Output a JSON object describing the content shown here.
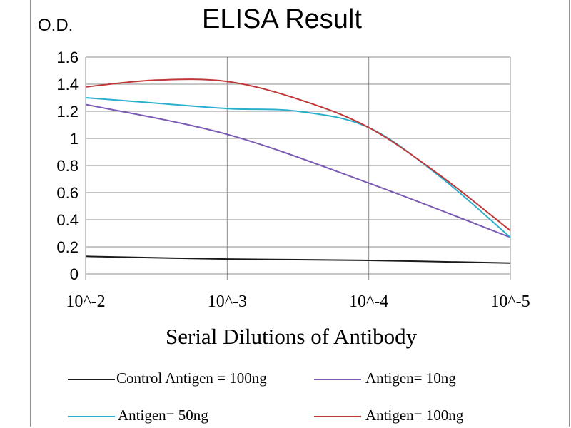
{
  "chart_data": {
    "type": "line",
    "title": "ELISA Result",
    "ylabel": "O.D.",
    "xlabel": "Serial Dilutions  of Antibody",
    "categories": [
      "10^-2",
      "10^-3",
      "10^-4",
      "10^-5"
    ],
    "x_positions": [
      0,
      1,
      2,
      3
    ],
    "ylim": [
      0,
      1.6
    ],
    "yticks": [
      0,
      0.2,
      0.4,
      0.6,
      0.8,
      1,
      1.2,
      1.4,
      1.6
    ],
    "ytick_labels": [
      "0",
      "0.2",
      "0.4",
      "0.6",
      "0.8",
      "1",
      "1.2",
      "1.4",
      "1.6"
    ],
    "grid": true,
    "legend_position": "bottom",
    "series": [
      {
        "name": "Control Antigen = 100ng",
        "color": "#1a1a1a",
        "x": [
          0,
          1,
          2,
          3
        ],
        "values": [
          0.13,
          0.11,
          0.1,
          0.08
        ]
      },
      {
        "name": "Antigen= 10ng",
        "color": "#7b5bb5",
        "x": [
          0,
          1,
          2,
          3
        ],
        "values": [
          1.25,
          1.03,
          0.67,
          0.27
        ]
      },
      {
        "name": "Antigen= 50ng",
        "color": "#2ab0cc",
        "x": [
          0,
          0.5,
          1,
          1.5,
          2,
          2.5,
          3
        ],
        "values": [
          1.3,
          1.26,
          1.22,
          1.2,
          1.08,
          0.72,
          0.27
        ]
      },
      {
        "name": "Antigen= 100ng",
        "color": "#c0393a",
        "x": [
          0,
          0.5,
          1,
          1.5,
          2,
          2.5,
          3
        ],
        "values": [
          1.38,
          1.43,
          1.42,
          1.29,
          1.08,
          0.73,
          0.32
        ]
      }
    ]
  }
}
